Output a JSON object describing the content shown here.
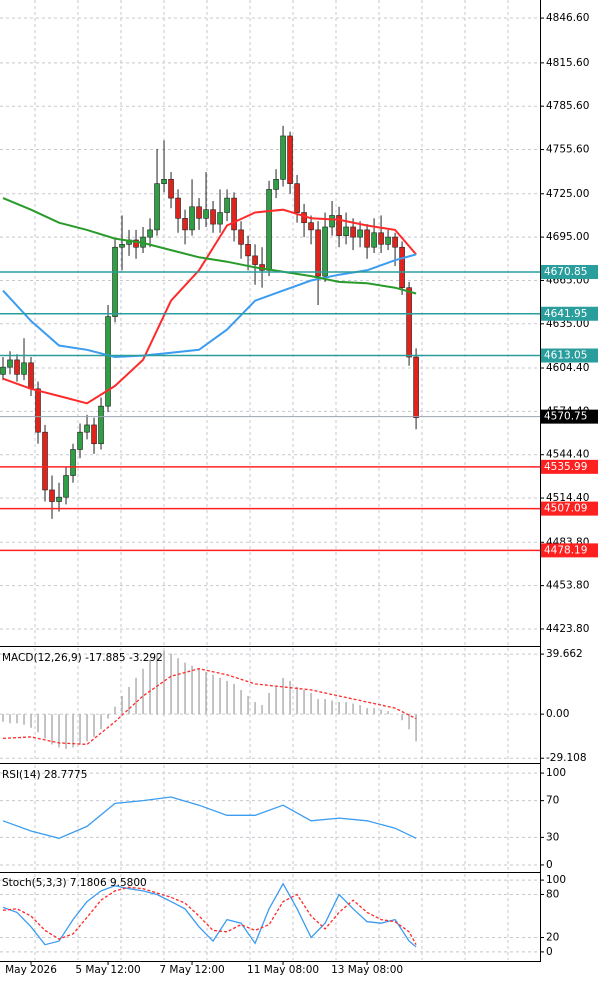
{
  "chart_data": [
    {
      "type": "candlestick",
      "xlim": [
        -0.43,
        76.7
      ],
      "ylim": [
        4412.7,
        4859.1
      ],
      "yticks": [
        {
          "value": 4846.6,
          "label": "4846.60"
        },
        {
          "value": 4815.6,
          "label": "4815.60"
        },
        {
          "value": 4785.6,
          "label": "4785.60"
        },
        {
          "value": 4755.6,
          "label": "4755.60"
        },
        {
          "value": 4725,
          "label": "4725.00"
        },
        {
          "value": 4695,
          "label": "4695.00"
        },
        {
          "value": 4665,
          "label": "4665.00"
        },
        {
          "value": 4635,
          "label": "4635.00"
        },
        {
          "value": 4604.4,
          "label": "4604.40"
        },
        {
          "value": 4574.4,
          "label": "4574.40"
        },
        {
          "value": 4544.4,
          "label": "4544.40"
        },
        {
          "value": 4514.4,
          "label": "4514.40"
        },
        {
          "value": 4483.8,
          "label": "4483.80"
        },
        {
          "value": 4453.8,
          "label": "4453.80"
        },
        {
          "value": 4423.8,
          "label": "4423.80"
        }
      ],
      "grid": true,
      "up_color": "#2ea043",
      "down_color": "#e0241b",
      "open": [
        4600,
        4605,
        4610,
        4600,
        4608,
        4590,
        4560,
        4520,
        4512,
        4515,
        4530,
        4548,
        4560,
        4565,
        4552,
        4578,
        4640,
        4688,
        4690,
        4693,
        4688,
        4695,
        4700,
        4732,
        4735,
        4722,
        4708,
        4700,
        4716,
        4708,
        4714,
        4704,
        4712,
        4722,
        4700,
        4690,
        4682,
        4676,
        4672,
        4728,
        4735,
        4765,
        4732,
        4712,
        4705,
        4700,
        4668,
        4702,
        4710,
        4696,
        4702,
        4695,
        4700,
        4688,
        4698,
        4690,
        4695,
        4688,
        4660,
        4612
      ],
      "high": [
        4612,
        4616,
        4614,
        4625,
        4612,
        4595,
        4565,
        4530,
        4525,
        4536,
        4552,
        4566,
        4572,
        4570,
        4584,
        4648,
        4694,
        4710,
        4700,
        4700,
        4702,
        4708,
        4756,
        4762,
        4740,
        4728,
        4714,
        4735,
        4722,
        4740,
        4720,
        4728,
        4728,
        4726,
        4706,
        4696,
        4690,
        4688,
        4734,
        4742,
        4772,
        4768,
        4738,
        4718,
        4710,
        4706,
        4712,
        4720,
        4716,
        4712,
        4708,
        4706,
        4704,
        4708,
        4710,
        4700,
        4698,
        4692,
        4664,
        4618
      ],
      "low": [
        4596,
        4600,
        4595,
        4596,
        4585,
        4552,
        4512,
        4500,
        4505,
        4510,
        4525,
        4542,
        4555,
        4545,
        4548,
        4574,
        4636,
        4672,
        4682,
        4680,
        4684,
        4688,
        4696,
        4726,
        4715,
        4698,
        4690,
        4696,
        4700,
        4702,
        4698,
        4698,
        4706,
        4692,
        4680,
        4672,
        4662,
        4660,
        4668,
        4722,
        4730,
        4725,
        4705,
        4695,
        4690,
        4648,
        4664,
        4696,
        4688,
        4690,
        4686,
        4688,
        4680,
        4684,
        4684,
        4686,
        4675,
        4655,
        4606,
        4562
      ],
      "close": [
        4605,
        4610,
        4600,
        4608,
        4590,
        4560,
        4520,
        4512,
        4515,
        4530,
        4548,
        4560,
        4565,
        4552,
        4578,
        4640,
        4688,
        4690,
        4693,
        4688,
        4695,
        4700,
        4732,
        4735,
        4722,
        4708,
        4700,
        4716,
        4708,
        4714,
        4704,
        4712,
        4722,
        4700,
        4690,
        4682,
        4676,
        4672,
        4728,
        4735,
        4765,
        4732,
        4712,
        4705,
        4700,
        4668,
        4702,
        4710,
        4696,
        4702,
        4695,
        4700,
        4688,
        4698,
        4690,
        4695,
        4688,
        4660,
        4612,
        4570
      ],
      "series": [
        {
          "color": "#ff2a2a",
          "x": [
            0,
            4,
            8,
            12,
            16,
            20,
            24,
            28,
            32,
            36,
            40,
            44,
            48,
            52,
            56,
            59
          ],
          "values": [
            4597,
            4590,
            4585,
            4580,
            4592,
            4610,
            4651,
            4672,
            4703,
            4712,
            4714,
            4708,
            4707,
            4703,
            4700,
            4683
          ]
        },
        {
          "color": "#3b9cf0",
          "x": [
            0,
            4,
            8,
            12,
            16,
            20,
            24,
            28,
            32,
            36,
            40,
            44,
            48,
            52,
            56,
            59
          ],
          "values": [
            4658,
            4637,
            4620,
            4617,
            4612,
            4613,
            4615,
            4617,
            4631,
            4651,
            4658,
            4665,
            4669,
            4672,
            4679,
            4683
          ]
        },
        {
          "color": "#2a9a2a",
          "x": [
            0,
            4,
            8,
            12,
            16,
            20,
            24,
            28,
            32,
            36,
            40,
            44,
            48,
            52,
            56,
            59
          ],
          "values": [
            4722,
            4714,
            4705,
            4700,
            4694,
            4691,
            4686,
            4681,
            4678,
            4674,
            4671,
            4668,
            4664,
            4663,
            4660,
            4656
          ]
        }
      ],
      "levels": [
        {
          "value": 4670.85,
          "color": "#2a9d9d"
        },
        {
          "value": 4641.95,
          "color": "#2a9d9d"
        },
        {
          "value": 4613.05,
          "color": "#2a9d9d"
        },
        {
          "value": 4570.75,
          "color": "#000000"
        },
        {
          "value": 4535.99,
          "color": "#ff2020"
        },
        {
          "value": 4507.09,
          "color": "#ff2020"
        },
        {
          "value": 4478.19,
          "color": "#ff2020"
        }
      ]
    },
    {
      "type": "macd",
      "title": "MACD(12,26,9) -17.885 -3.292",
      "xlim": [
        -0.43,
        76.7
      ],
      "ylim": [
        -31.6,
        43.7
      ],
      "yticks": [
        39.662,
        {
          "value": 0,
          "label": "0.00"
        },
        -29.108
      ],
      "histogram": {
        "color": "#b0b0b0",
        "values": [
          -5,
          -6,
          -6,
          -7,
          -9,
          -12,
          -16,
          -20,
          -22,
          -23,
          -22,
          -20,
          -18,
          -15,
          -10,
          -3,
          5,
          12,
          18,
          24,
          30,
          36,
          40,
          42,
          40,
          37,
          34,
          32,
          30,
          28,
          26,
          24,
          22,
          20,
          16,
          12,
          8,
          6,
          14,
          18,
          24,
          22,
          18,
          16,
          14,
          10,
          10,
          9,
          8,
          8,
          7,
          6,
          4,
          4,
          3,
          2,
          0,
          -4,
          -10,
          -18
        ]
      },
      "series": [
        {
          "color": "#ff2a2a",
          "x": [
            0,
            4,
            8,
            12,
            16,
            20,
            24,
            28,
            32,
            36,
            40,
            44,
            48,
            52,
            56,
            59
          ],
          "values": [
            -16,
            -15,
            -19,
            -20,
            -5,
            12,
            25,
            30,
            26,
            20,
            18,
            16,
            12,
            8,
            4,
            -3
          ]
        }
      ]
    },
    {
      "type": "line",
      "title": "RSI(14) 28.7775",
      "xlim": [
        -0.43,
        76.7
      ],
      "ylim": [
        -6.6,
        108.8
      ],
      "yticks": [
        100,
        70,
        30,
        0
      ],
      "series": [
        {
          "color": "#3b9cf0",
          "x": [
            0,
            4,
            8,
            12,
            16,
            20,
            24,
            28,
            32,
            36,
            40,
            44,
            48,
            52,
            56,
            59
          ],
          "values": [
            48,
            37,
            29,
            42,
            67,
            70,
            74,
            65,
            54,
            54,
            65,
            48,
            51,
            48,
            40,
            29
          ]
        }
      ]
    },
    {
      "type": "line",
      "title": "Stoch(5,3,3) 7.1806 9.5800",
      "xlim": [
        -0.43,
        76.7
      ],
      "ylim": [
        -11.3,
        108.5
      ],
      "yticks": [
        100,
        80,
        20,
        0
      ],
      "xticks": [
        {
          "value": 4,
          "label": "May 2026"
        },
        {
          "value": 15,
          "label": "5 May 12:00"
        },
        {
          "value": 27,
          "label": "7 May 12:00"
        },
        {
          "value": 40,
          "label": "11 May 08:00"
        },
        {
          "value": 52,
          "label": "13 May 08:00"
        }
      ],
      "series": [
        {
          "color": "#3b9cf0",
          "x": [
            0,
            2,
            4,
            6,
            8,
            10,
            12,
            14,
            16,
            18,
            20,
            22,
            24,
            26,
            28,
            30,
            32,
            34,
            36,
            38,
            40,
            42,
            44,
            46,
            48,
            50,
            52,
            54,
            56,
            58,
            59
          ],
          "values": [
            62,
            55,
            35,
            10,
            15,
            45,
            70,
            85,
            92,
            88,
            85,
            80,
            70,
            60,
            35,
            15,
            45,
            40,
            12,
            60,
            95,
            60,
            20,
            40,
            80,
            60,
            42,
            40,
            45,
            15,
            7
          ]
        },
        {
          "color": "#ff2a2a",
          "dashed": true,
          "x": [
            0,
            2,
            4,
            6,
            8,
            10,
            12,
            14,
            16,
            18,
            20,
            22,
            24,
            26,
            28,
            30,
            32,
            34,
            36,
            38,
            40,
            42,
            44,
            46,
            48,
            50,
            52,
            54,
            56,
            58,
            59
          ],
          "values": [
            58,
            60,
            50,
            30,
            18,
            25,
            48,
            72,
            85,
            90,
            88,
            82,
            76,
            68,
            50,
            30,
            28,
            38,
            30,
            38,
            70,
            80,
            50,
            32,
            55,
            72,
            55,
            45,
            42,
            28,
            10
          ]
        }
      ]
    }
  ]
}
